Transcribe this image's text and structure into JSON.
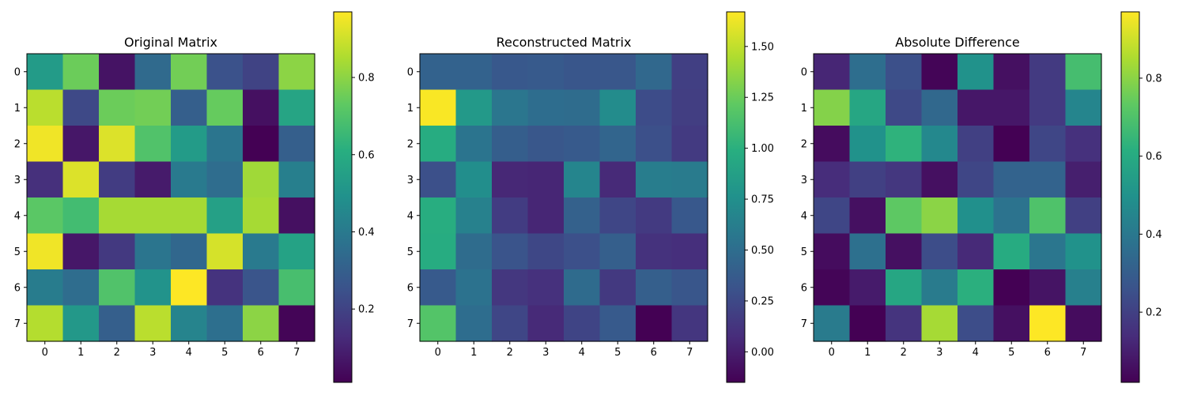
{
  "chart_data": [
    {
      "type": "heatmap",
      "title": "Original Matrix",
      "x_ticks": [
        "0",
        "1",
        "2",
        "3",
        "4",
        "5",
        "6",
        "7"
      ],
      "y_ticks": [
        "0",
        "1",
        "2",
        "3",
        "4",
        "5",
        "6",
        "7"
      ],
      "colormap": "viridis",
      "vmin": 0.01,
      "vmax": 0.97,
      "colorbar_ticks": [
        0.2,
        0.4,
        0.6,
        0.8
      ],
      "colorbar_labels": [
        "0.2",
        "0.4",
        "0.6",
        "0.8"
      ],
      "values": [
        [
          0.53,
          0.75,
          0.06,
          0.34,
          0.76,
          0.25,
          0.2,
          0.8
        ],
        [
          0.87,
          0.22,
          0.75,
          0.76,
          0.3,
          0.74,
          0.05,
          0.57
        ],
        [
          0.95,
          0.07,
          0.92,
          0.7,
          0.53,
          0.38,
          0.01,
          0.3
        ],
        [
          0.14,
          0.92,
          0.18,
          0.08,
          0.4,
          0.35,
          0.83,
          0.42
        ],
        [
          0.72,
          0.67,
          0.84,
          0.84,
          0.84,
          0.55,
          0.84,
          0.05
        ],
        [
          0.95,
          0.07,
          0.17,
          0.38,
          0.33,
          0.91,
          0.4,
          0.56
        ],
        [
          0.41,
          0.35,
          0.7,
          0.5,
          0.97,
          0.15,
          0.26,
          0.68
        ],
        [
          0.86,
          0.52,
          0.3,
          0.87,
          0.44,
          0.36,
          0.8,
          0.02
        ]
      ]
    },
    {
      "type": "heatmap",
      "title": "Reconstructed Matrix",
      "x_ticks": [
        "0",
        "1",
        "2",
        "3",
        "4",
        "5",
        "6",
        "7"
      ],
      "y_ticks": [
        "0",
        "1",
        "2",
        "3",
        "4",
        "5",
        "6",
        "7"
      ],
      "colormap": "viridis",
      "vmin": -0.15,
      "vmax": 1.67,
      "colorbar_ticks": [
        0.0,
        0.25,
        0.5,
        0.75,
        1.0,
        1.25,
        1.5
      ],
      "colorbar_labels": [
        "0.00",
        "0.25",
        "0.50",
        "0.75",
        "1.00",
        "1.25",
        "1.50"
      ],
      "values": [
        [
          0.42,
          0.42,
          0.35,
          0.36,
          0.33,
          0.34,
          0.46,
          0.19
        ],
        [
          1.66,
          0.82,
          0.56,
          0.5,
          0.49,
          0.72,
          0.27,
          0.18
        ],
        [
          0.97,
          0.55,
          0.39,
          0.34,
          0.36,
          0.44,
          0.29,
          0.16
        ],
        [
          0.29,
          0.74,
          0.05,
          0.04,
          0.67,
          0.06,
          0.61,
          0.6
        ],
        [
          0.98,
          0.64,
          0.17,
          0.04,
          0.41,
          0.23,
          0.16,
          0.35
        ],
        [
          0.97,
          0.49,
          0.32,
          0.24,
          0.29,
          0.4,
          0.11,
          0.09
        ],
        [
          0.36,
          0.53,
          0.14,
          0.1,
          0.48,
          0.15,
          0.4,
          0.33
        ],
        [
          1.17,
          0.5,
          0.23,
          0.06,
          0.22,
          0.36,
          -0.15,
          0.13
        ]
      ]
    },
    {
      "type": "heatmap",
      "title": "Absolute Difference",
      "x_ticks": [
        "0",
        "1",
        "2",
        "3",
        "4",
        "5",
        "6",
        "7"
      ],
      "y_ticks": [
        "0",
        "1",
        "2",
        "3",
        "4",
        "5",
        "6",
        "7"
      ],
      "colormap": "viridis",
      "vmin": 0.02,
      "vmax": 0.97,
      "colorbar_ticks": [
        0.2,
        0.4,
        0.6,
        0.8
      ],
      "colorbar_labels": [
        "0.2",
        "0.4",
        "0.6",
        "0.8"
      ],
      "values": [
        [
          0.12,
          0.36,
          0.25,
          0.03,
          0.5,
          0.06,
          0.18,
          0.68
        ],
        [
          0.79,
          0.58,
          0.23,
          0.34,
          0.08,
          0.08,
          0.18,
          0.45
        ],
        [
          0.05,
          0.5,
          0.63,
          0.46,
          0.2,
          0.02,
          0.22,
          0.15
        ],
        [
          0.14,
          0.2,
          0.17,
          0.06,
          0.22,
          0.32,
          0.32,
          0.1
        ],
        [
          0.22,
          0.06,
          0.73,
          0.8,
          0.49,
          0.38,
          0.7,
          0.2
        ],
        [
          0.05,
          0.37,
          0.06,
          0.24,
          0.13,
          0.6,
          0.39,
          0.5
        ],
        [
          0.03,
          0.09,
          0.58,
          0.41,
          0.62,
          0.02,
          0.07,
          0.43
        ],
        [
          0.41,
          0.02,
          0.16,
          0.84,
          0.24,
          0.06,
          0.97,
          0.05
        ]
      ]
    }
  ]
}
